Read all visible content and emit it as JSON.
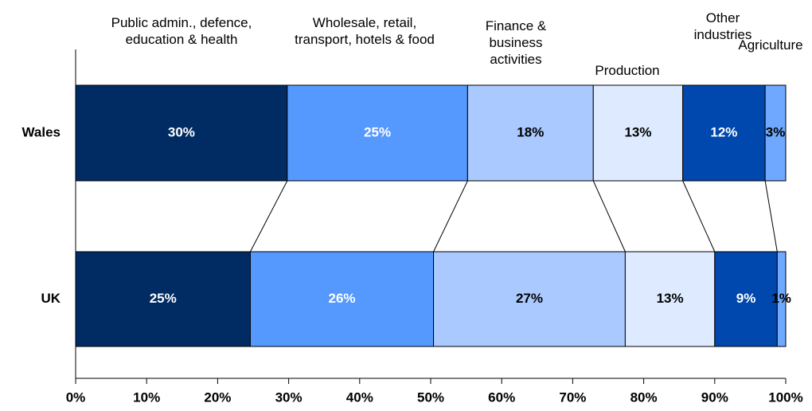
{
  "chart_data": {
    "type": "stacked-bar-horizontal",
    "categories": [
      "Wales",
      "UK"
    ],
    "series": [
      {
        "name": "Public admin., defence, education & health",
        "color": "#002b63",
        "label_color": "#ffffff",
        "values": [
          29.8,
          24.6
        ],
        "value_labels": [
          "30%",
          "25%"
        ]
      },
      {
        "name": "Wholesale, retail, transport,  hotels & food",
        "color": "#5599ff",
        "label_color": "#ffffff",
        "values": [
          25.4,
          25.8
        ],
        "value_labels": [
          "25%",
          "26%"
        ]
      },
      {
        "name": "Finance & business activities",
        "color": "#a9c9ff",
        "label_color": "#000000",
        "values": [
          17.7,
          27.0
        ],
        "value_labels": [
          "18%",
          "27%"
        ]
      },
      {
        "name": "Production",
        "color": "#deeaff",
        "label_color": "#000000",
        "values": [
          12.6,
          12.6
        ],
        "value_labels": [
          "13%",
          "13%"
        ]
      },
      {
        "name": "Other industries",
        "color": "#0048ad",
        "label_color": "#ffffff",
        "values": [
          11.6,
          8.8
        ],
        "value_labels": [
          "12%",
          "9%"
        ]
      },
      {
        "name": "Agriculture",
        "color": "#6fa8ff",
        "label_color": "#000000",
        "values": [
          2.9,
          1.2
        ],
        "value_labels": [
          "3%",
          "1%"
        ]
      }
    ],
    "xlim": [
      0,
      100
    ],
    "xticks": [
      {
        "value": 0,
        "label": "0%"
      },
      {
        "value": 10,
        "label": "10%"
      },
      {
        "value": 20,
        "label": "20%"
      },
      {
        "value": 30,
        "label": "30%"
      },
      {
        "value": 40,
        "label": "40%"
      },
      {
        "value": 50,
        "label": "50%"
      },
      {
        "value": 60,
        "label": "60%"
      },
      {
        "value": 70,
        "label": "70%"
      },
      {
        "value": 80,
        "label": "80%"
      },
      {
        "value": 90,
        "label": "90%"
      },
      {
        "value": 100,
        "label": "100%"
      }
    ]
  }
}
